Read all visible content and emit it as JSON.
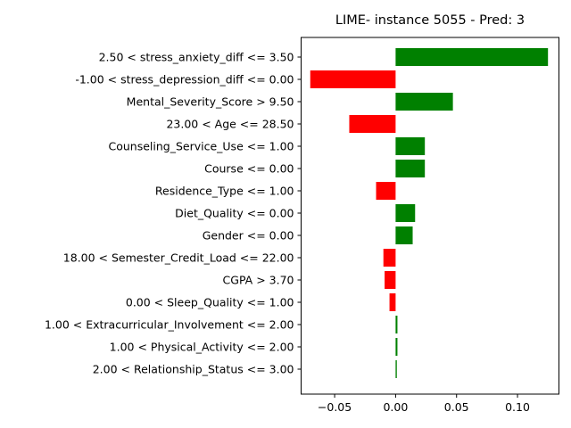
{
  "chart_data": {
    "type": "bar",
    "orientation": "horizontal",
    "title": "LIME- instance 5055 - Pred: 3",
    "xlabel": "",
    "ylabel": "",
    "xlim": [
      -0.0775,
      0.134
    ],
    "xticks": [
      -0.05,
      0.0,
      0.05,
      0.1
    ],
    "xtick_labels": [
      "−0.05",
      "0.00",
      "0.05",
      "0.10"
    ],
    "grid": false,
    "legend": "none",
    "colors": {
      "positive": "#008000",
      "negative": "#ff0000"
    },
    "categories": [
      "2.50 < stress_anxiety_diff <= 3.50",
      "-1.00 < stress_depression_diff <= 0.00",
      "Mental_Severity_Score > 9.50",
      "23.00 < Age <= 28.50",
      "Counseling_Service_Use <= 1.00",
      "Course <= 0.00",
      "Residence_Type <= 1.00",
      "Diet_Quality <= 0.00",
      "Gender <= 0.00",
      "18.00 < Semester_Credit_Load <= 22.00",
      "CGPA > 3.70",
      "0.00 < Sleep_Quality <= 1.00",
      "1.00 < Extracurricular_Involvement <= 2.00",
      "1.00 < Physical_Activity <= 2.00",
      "2.00 < Relationship_Status <= 3.00"
    ],
    "values": [
      0.125,
      -0.07,
      0.047,
      -0.038,
      0.024,
      0.024,
      -0.016,
      0.016,
      0.014,
      -0.01,
      -0.009,
      -0.005,
      0.0015,
      0.0015,
      0.001
    ]
  }
}
